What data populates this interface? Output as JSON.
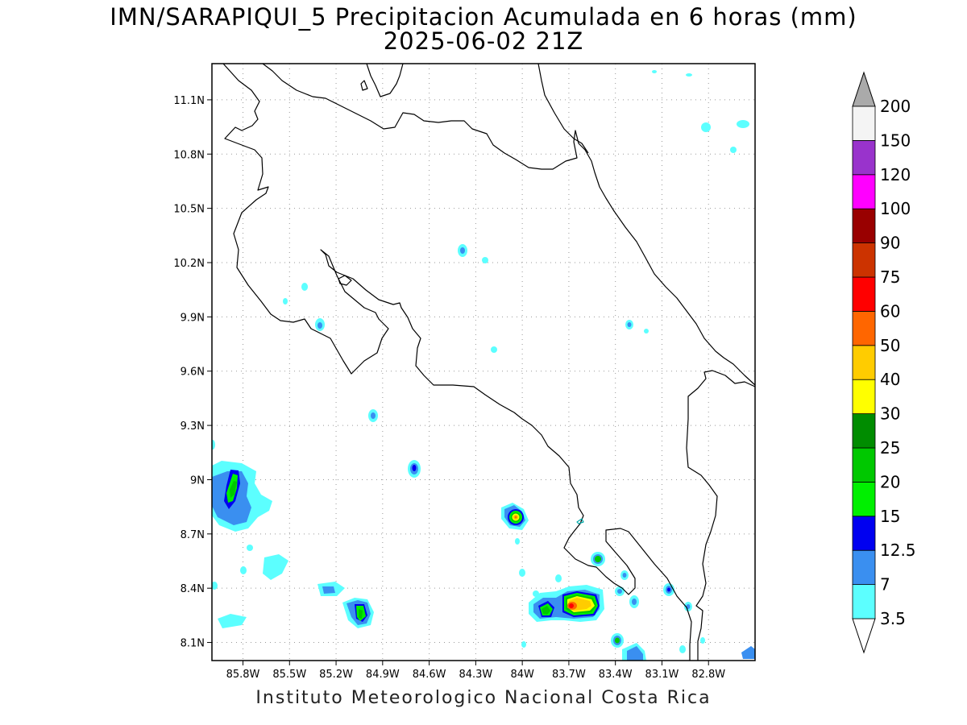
{
  "title": {
    "line1": "IMN/SARAPIQUI_5 Precipitacion Acumulada en 6 horas (mm)",
    "line2": "2025-06-02 21Z"
  },
  "footer": "Instituto Meteorologico Nacional Costa Rica",
  "map": {
    "lon_range": [
      -86.0,
      -82.5
    ],
    "lat_range": [
      8.0,
      11.3
    ],
    "x_ticks": [
      {
        "lon": -85.8,
        "label": "85.8W"
      },
      {
        "lon": -85.5,
        "label": "85.5W"
      },
      {
        "lon": -85.2,
        "label": "85.2W"
      },
      {
        "lon": -84.9,
        "label": "84.9W"
      },
      {
        "lon": -84.6,
        "label": "84.6W"
      },
      {
        "lon": -84.3,
        "label": "84.3W"
      },
      {
        "lon": -84.0,
        "label": "84W"
      },
      {
        "lon": -83.7,
        "label": "83.7W"
      },
      {
        "lon": -83.4,
        "label": "83.4W"
      },
      {
        "lon": -83.1,
        "label": "83.1W"
      },
      {
        "lon": -82.8,
        "label": "82.8W"
      }
    ],
    "y_ticks": [
      {
        "lat": 11.1,
        "label": "11.1N"
      },
      {
        "lat": 10.8,
        "label": "10.8N"
      },
      {
        "lat": 10.5,
        "label": "10.5N"
      },
      {
        "lat": 10.2,
        "label": "10.2N"
      },
      {
        "lat": 9.9,
        "label": "9.9N"
      },
      {
        "lat": 9.6,
        "label": "9.6N"
      },
      {
        "lat": 9.3,
        "label": "9.3N"
      },
      {
        "lat": 9.0,
        "label": "9N"
      },
      {
        "lat": 8.7,
        "label": "8.7N"
      },
      {
        "lat": 8.4,
        "label": "8.4N"
      },
      {
        "lat": 8.1,
        "label": "8.1N"
      }
    ],
    "grid": true
  },
  "colors": {
    "c3_5": "#5cffff",
    "c7": "#3a8ff0",
    "c12_5": "#0000f0",
    "c15": "#00f000",
    "c20": "#00c800",
    "c25": "#008c00",
    "c30": "#ffff00",
    "c40": "#ffcc00",
    "c50": "#ff6600",
    "c60": "#ff0000",
    "c75": "#cc3300",
    "c90": "#990000",
    "c100": "#ff00ff",
    "c120": "#9933cc",
    "c150": "#f4f4f4",
    "c200": "#aaaaaa"
  },
  "legend": {
    "labels": [
      "3.5",
      "7",
      "12.5",
      "15",
      "20",
      "25",
      "30",
      "40",
      "50",
      "60",
      "75",
      "90",
      "100",
      "120",
      "150",
      "200"
    ]
  },
  "precip_cells": [
    {
      "lon": -85.82,
      "lat": 8.92,
      "level": 4
    },
    {
      "lon": -85.83,
      "lat": 8.88,
      "level": 2
    },
    {
      "lon": -85.7,
      "lat": 8.83,
      "level": 1
    },
    {
      "lon": -85.75,
      "lat": 8.23,
      "level": 1
    },
    {
      "lon": -85.45,
      "lat": 8.46,
      "level": 1
    },
    {
      "lon": -85.13,
      "lat": 8.4,
      "level": 2
    },
    {
      "lon": -85.03,
      "lat": 8.27,
      "level": 5
    },
    {
      "lon": -84.66,
      "lat": 9.05,
      "level": 3
    },
    {
      "lon": -84.96,
      "lat": 9.36,
      "level": 2
    },
    {
      "lon": -85.26,
      "lat": 9.85,
      "level": 2
    },
    {
      "lon": -84.37,
      "lat": 10.27,
      "level": 2
    },
    {
      "lon": -84.03,
      "lat": 8.79,
      "level": 8
    },
    {
      "lon": -83.87,
      "lat": 8.28,
      "level": 5
    },
    {
      "lon": -83.69,
      "lat": 8.31,
      "level": 9
    },
    {
      "lon": -83.6,
      "lat": 8.32,
      "level": 7
    },
    {
      "lon": -83.54,
      "lat": 8.56,
      "level": 5
    },
    {
      "lon": -83.39,
      "lat": 8.11,
      "level": 4
    },
    {
      "lon": -83.35,
      "lat": 8.04,
      "level": 2
    },
    {
      "lon": -83.05,
      "lat": 8.4,
      "level": 3
    },
    {
      "lon": -83.39,
      "lat": 8.39,
      "level": 2
    },
    {
      "lon": -82.95,
      "lat": 8.31,
      "level": 2
    },
    {
      "lon": -83.35,
      "lat": 9.86,
      "level": 2
    },
    {
      "lon": -84.16,
      "lat": 9.72,
      "level": 1
    },
    {
      "lon": -84.21,
      "lat": 10.21,
      "level": 1
    },
    {
      "lon": -82.73,
      "lat": 10.96,
      "level": 1
    },
    {
      "lon": -82.93,
      "lat": 10.95,
      "level": 1
    }
  ]
}
